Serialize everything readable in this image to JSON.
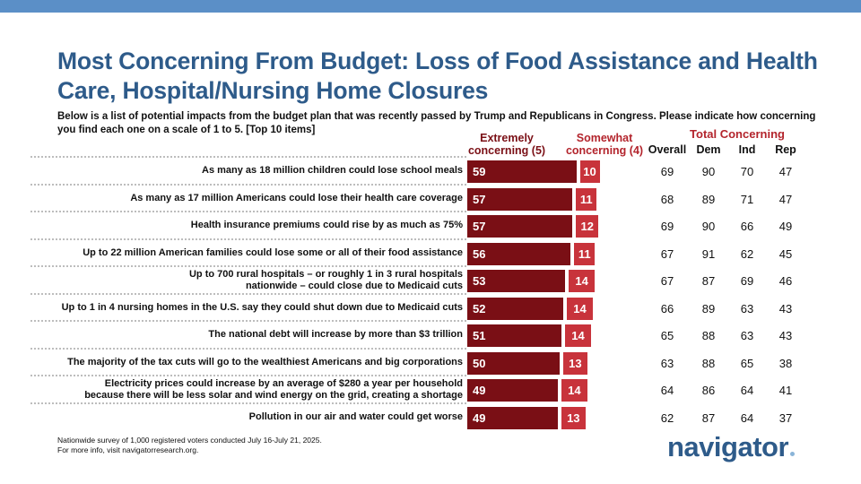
{
  "title": "Most Concerning From Budget: Loss of Food Assistance and Health Care, Hospital/Nursing Home Closures",
  "subtitle": "Below is a list of potential impacts from the budget plan that was recently passed by Trump and Republicans in Congress. Please indicate how concerning you find each one on a scale of 1 to 5. [Top 10 items]",
  "headers": {
    "extremely": "Extremely concerning (5)",
    "somewhat": "Somewhat concerning (4)",
    "total": "Total Concerning",
    "overall": "Overall",
    "dem": "Dem",
    "ind": "Ind",
    "rep": "Rep"
  },
  "colors": {
    "extremely": "#7a0f15",
    "somewhat": "#c8333b",
    "title": "#2e5b8a",
    "accent_bar": "#5b8fc7"
  },
  "chart_data": {
    "type": "bar",
    "orientation": "horizontal",
    "stacked": true,
    "categories": [
      "As many as 18 million children could lose school meals",
      "As many as 17 million Americans could lose their health care coverage",
      "Health insurance premiums could rise by as much as 75%",
      "Up to 22 million American families could lose some or all of their food assistance",
      "Up to 700 rural hospitals – or roughly 1 in 3 rural hospitals nationwide – could close due to Medicaid cuts",
      "Up to 1 in 4 nursing homes in the U.S. say they could shut down due to Medicaid cuts",
      "The national debt will increase by more than $3 trillion",
      "The majority of the tax cuts will go to the wealthiest Americans and big corporations",
      "Electricity prices could increase by an average of $280 a year per household because there will be less solar and wind energy on the grid, creating a shortage",
      "Pollution in our air and water could get worse"
    ],
    "label_lines": [
      [
        "As many as 18 million children could lose school meals"
      ],
      [
        "As many as 17 million Americans could lose their health care coverage"
      ],
      [
        "Health insurance premiums could rise by as much as 75%"
      ],
      [
        "Up to 22 million American families could lose some or all of their food assistance"
      ],
      [
        "Up to 700 rural hospitals – or roughly 1 in 3 rural hospitals",
        "nationwide – could close due to Medicaid cuts"
      ],
      [
        "Up to 1 in 4 nursing homes in the U.S. say they could shut down due to Medicaid cuts"
      ],
      [
        "The national debt will increase by more than $3 trillion"
      ],
      [
        "The majority of the tax cuts will go to the wealthiest Americans and big corporations"
      ],
      [
        "Electricity prices could increase by an average of $280 a year per household",
        "because there will be less solar and wind energy on the grid, creating a shortage"
      ],
      [
        "Pollution in our air and water could get worse"
      ]
    ],
    "series": [
      {
        "name": "Extremely concerning (5)",
        "values": [
          59,
          57,
          57,
          56,
          53,
          52,
          51,
          50,
          49,
          49
        ]
      },
      {
        "name": "Somewhat concerning (4)",
        "values": [
          10,
          11,
          12,
          11,
          14,
          14,
          14,
          13,
          14,
          13
        ]
      }
    ],
    "total_concerning": {
      "overall": [
        69,
        68,
        69,
        67,
        67,
        66,
        65,
        63,
        64,
        62
      ],
      "dem": [
        90,
        89,
        90,
        91,
        87,
        89,
        88,
        88,
        86,
        87
      ],
      "ind": [
        70,
        71,
        66,
        62,
        69,
        63,
        63,
        65,
        64,
        64
      ],
      "rep": [
        47,
        47,
        49,
        45,
        46,
        43,
        43,
        38,
        41,
        37
      ]
    }
  },
  "footnote_lines": [
    "Nationwide survey of 1,000 registered voters conducted July 16-July 21, 2025.",
    "For more info, visit navigatorresearch.org."
  ],
  "logo": "navigator"
}
